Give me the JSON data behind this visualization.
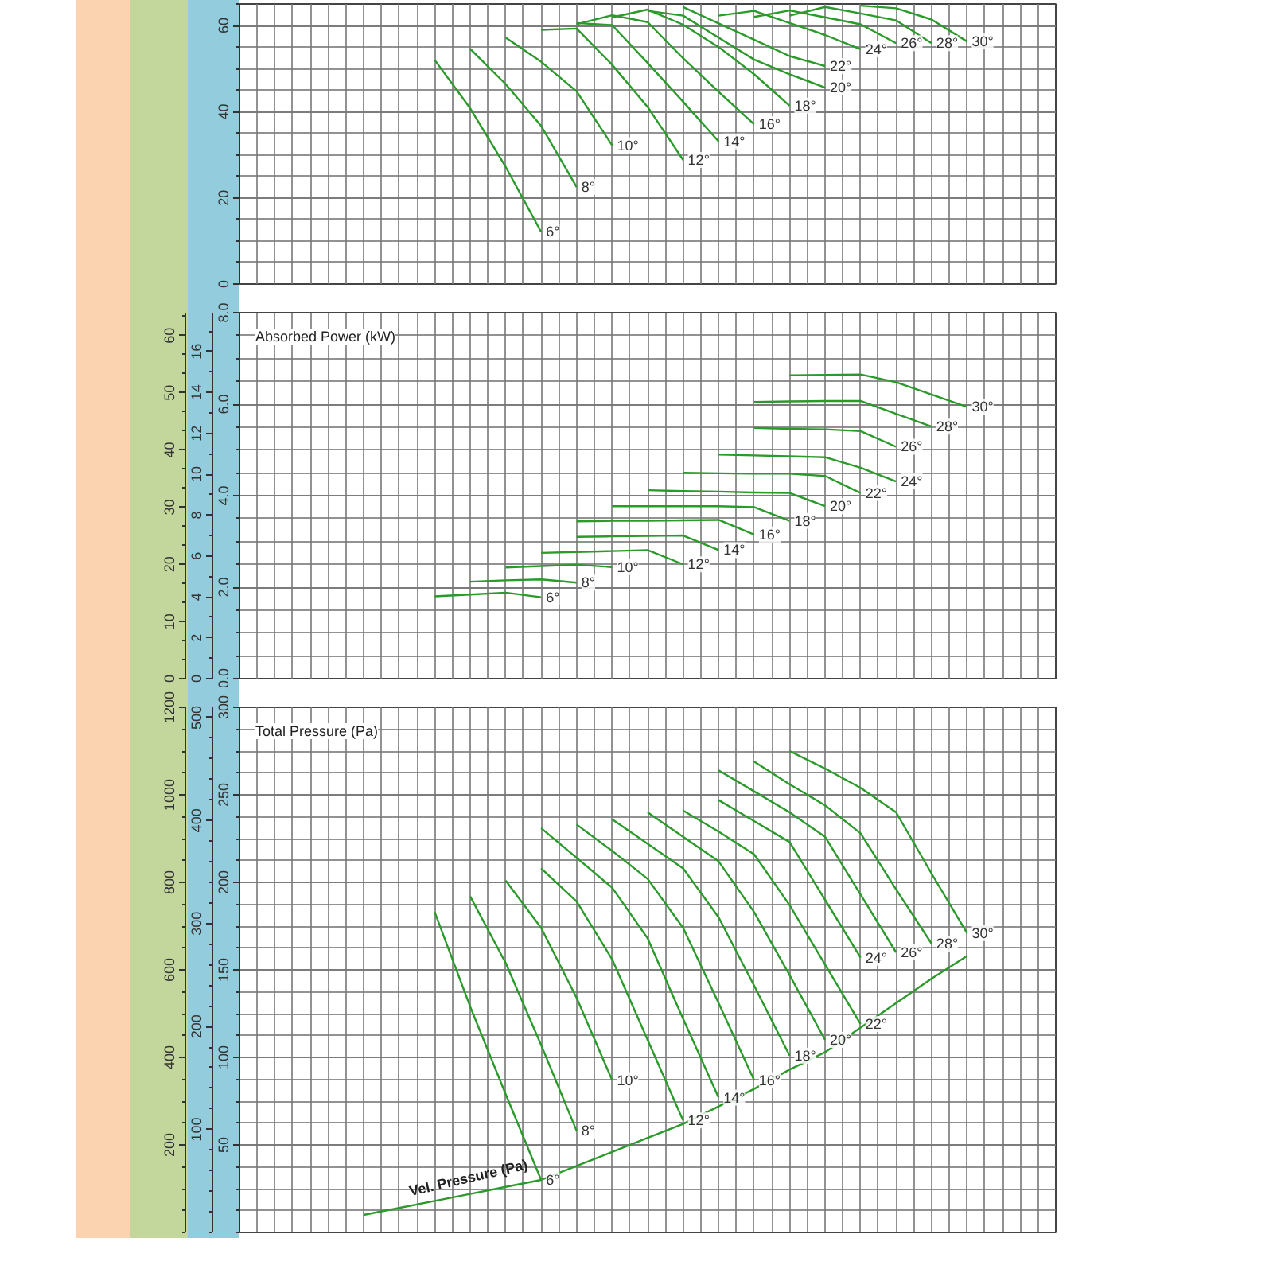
{
  "chart_data": [
    {
      "type": "line",
      "categories": [
        null,
        null,
        null,
        null,
        null,
        null,
        null,
        null,
        null,
        null,
        null,
        null,
        null,
        null,
        null,
        null,
        null,
        null,
        null,
        null,
        null,
        null,
        null
      ],
      "ylim": [
        0,
        65
      ],
      "yticks": [
        0,
        20,
        40,
        60
      ],
      "grid": true,
      "tick_labels": "y",
      "series": [
        {
          "name": "6°",
          "color": "#2a9a2a",
          "values": [
            null,
            null,
            null,
            null,
            null,
            52,
            40.8,
            27.2,
            12.1,
            null,
            null,
            null,
            null,
            null,
            null,
            null,
            null,
            null,
            null,
            null,
            null,
            null,
            null
          ]
        },
        {
          "name": "8°",
          "color": "#2a9a2a",
          "values": [
            null,
            null,
            null,
            null,
            null,
            null,
            54.6,
            46.4,
            36.7,
            22.5,
            null,
            null,
            null,
            null,
            null,
            null,
            null,
            null,
            null,
            null,
            null,
            null,
            null
          ]
        },
        {
          "name": "10°",
          "color": "#2a9a2a",
          "values": [
            null,
            null,
            null,
            null,
            null,
            null,
            null,
            57.2,
            51.6,
            44.7,
            32.2,
            null,
            null,
            null,
            null,
            null,
            null,
            null,
            null,
            null,
            null,
            null,
            null
          ]
        },
        {
          "name": "12°",
          "color": "#2a9a2a",
          "values": [
            null,
            null,
            null,
            null,
            null,
            null,
            null,
            null,
            59.0,
            59.3,
            50.9,
            41.1,
            28.8,
            null,
            null,
            null,
            null,
            null,
            null,
            null,
            null,
            null,
            null
          ]
        },
        {
          "name": "14°",
          "color": "#2a9a2a",
          "values": [
            null,
            null,
            null,
            null,
            null,
            null,
            null,
            null,
            null,
            60.6,
            60.1,
            51.3,
            42.3,
            33.1,
            null,
            null,
            null,
            null,
            null,
            null,
            null,
            null,
            null
          ]
        },
        {
          "name": "16°",
          "color": "#2a9a2a",
          "values": [
            null,
            null,
            null,
            null,
            null,
            null,
            null,
            null,
            null,
            60.3,
            62.4,
            60.8,
            52.4,
            44.6,
            37.1,
            null,
            null,
            null,
            null,
            null,
            null,
            null,
            null
          ]
        },
        {
          "name": "18°",
          "color": "#2a9a2a",
          "values": [
            null,
            null,
            null,
            null,
            null,
            null,
            null,
            null,
            null,
            null,
            61.9,
            63.7,
            60.2,
            55.0,
            48.7,
            41.4,
            null,
            null,
            null,
            null,
            null,
            null,
            null
          ]
        },
        {
          "name": "20°",
          "color": "#2a9a2a",
          "values": [
            null,
            null,
            null,
            null,
            null,
            null,
            null,
            null,
            null,
            null,
            null,
            63.4,
            62.3,
            57.2,
            52.1,
            48.7,
            45.6,
            null,
            null,
            null,
            null,
            null,
            null
          ]
        },
        {
          "name": "22°",
          "color": "#2a9a2a",
          "values": [
            null,
            null,
            null,
            null,
            null,
            null,
            null,
            null,
            null,
            null,
            null,
            null,
            64.3,
            60.5,
            56.7,
            52.9,
            50.6,
            null,
            null,
            null,
            null,
            null,
            null
          ]
        },
        {
          "name": "24°",
          "color": "#2a9a2a",
          "values": [
            null,
            null,
            null,
            null,
            null,
            null,
            null,
            null,
            null,
            null,
            null,
            null,
            null,
            62.3,
            63.4,
            60.6,
            57.8,
            54.5,
            null,
            null,
            null,
            null,
            null
          ]
        },
        {
          "name": "26°",
          "color": "#2a9a2a",
          "values": [
            null,
            null,
            null,
            null,
            null,
            null,
            null,
            null,
            null,
            null,
            null,
            null,
            null,
            null,
            62.0,
            63.5,
            61.9,
            60.3,
            55.9,
            null,
            null,
            null,
            null
          ]
        },
        {
          "name": "28°",
          "color": "#2a9a2a",
          "values": [
            null,
            null,
            null,
            null,
            null,
            null,
            null,
            null,
            null,
            null,
            null,
            null,
            null,
            null,
            null,
            62.3,
            64.3,
            62.8,
            61.2,
            55.9,
            null,
            null,
            null
          ]
        },
        {
          "name": "30°",
          "color": "#2a9a2a",
          "values": [
            null,
            null,
            null,
            null,
            null,
            null,
            null,
            null,
            null,
            null,
            null,
            null,
            null,
            null,
            null,
            null,
            null,
            64.6,
            64.0,
            61.4,
            56.3,
            null,
            null
          ]
        }
      ]
    },
    {
      "type": "line",
      "title": "Absorbed Power (kW)",
      "categories": [
        null,
        null,
        null,
        null,
        null,
        null,
        null,
        null,
        null,
        null,
        null,
        null,
        null,
        null,
        null,
        null,
        null,
        null,
        null,
        null,
        null,
        null,
        null
      ],
      "ylim": [
        0,
        8
      ],
      "yticks": [
        {
          "value": 0,
          "label": "0.0"
        },
        {
          "value": 2,
          "label": "2.0"
        },
        {
          "value": 4,
          "label": "4.0"
        },
        {
          "value": 6,
          "label": "6.0"
        },
        {
          "value": 8,
          "label": "8.0"
        }
      ],
      "y2lim": [
        0,
        17.9
      ],
      "y2ticks": [
        0,
        2,
        4,
        6,
        8,
        10,
        12,
        14,
        16
      ],
      "y3lim": [
        0,
        64
      ],
      "y3ticks": [
        0,
        10,
        20,
        30,
        40,
        50,
        60
      ],
      "grid": true,
      "tick_labels": "y",
      "series": [
        {
          "name": "6°",
          "color": "#2a9a2a",
          "values": [
            null,
            null,
            null,
            null,
            null,
            1.8,
            1.84,
            1.88,
            1.78,
            null,
            null,
            null,
            null,
            null,
            null,
            null,
            null,
            null,
            null,
            null,
            null,
            null,
            null
          ]
        },
        {
          "name": "8°",
          "color": "#2a9a2a",
          "values": [
            null,
            null,
            null,
            null,
            null,
            null,
            2.12,
            2.15,
            2.17,
            2.1,
            null,
            null,
            null,
            null,
            null,
            null,
            null,
            null,
            null,
            null,
            null,
            null,
            null
          ]
        },
        {
          "name": "10°",
          "color": "#2a9a2a",
          "values": [
            null,
            null,
            null,
            null,
            null,
            null,
            null,
            2.43,
            2.46,
            2.49,
            2.44,
            null,
            null,
            null,
            null,
            null,
            null,
            null,
            null,
            null,
            null,
            null,
            null
          ]
        },
        {
          "name": "12°",
          "color": "#2a9a2a",
          "values": [
            null,
            null,
            null,
            null,
            null,
            null,
            null,
            null,
            2.75,
            2.77,
            2.79,
            2.81,
            2.5,
            null,
            null,
            null,
            null,
            null,
            null,
            null,
            null,
            null,
            null
          ]
        },
        {
          "name": "14°",
          "color": "#2a9a2a",
          "values": [
            null,
            null,
            null,
            null,
            null,
            null,
            null,
            null,
            null,
            3.1,
            3.11,
            3.12,
            3.13,
            2.81,
            null,
            null,
            null,
            null,
            null,
            null,
            null,
            null,
            null
          ]
        },
        {
          "name": "16°",
          "color": "#2a9a2a",
          "values": [
            null,
            null,
            null,
            null,
            null,
            null,
            null,
            null,
            null,
            3.44,
            3.45,
            3.45,
            3.46,
            3.47,
            3.15,
            null,
            null,
            null,
            null,
            null,
            null,
            null,
            null
          ]
        },
        {
          "name": "18°",
          "color": "#2a9a2a",
          "values": [
            null,
            null,
            null,
            null,
            null,
            null,
            null,
            null,
            null,
            null,
            3.77,
            3.77,
            3.77,
            3.77,
            3.75,
            3.45,
            null,
            null,
            null,
            null,
            null,
            null,
            null
          ]
        },
        {
          "name": "20°",
          "color": "#2a9a2a",
          "values": [
            null,
            null,
            null,
            null,
            null,
            null,
            null,
            null,
            null,
            null,
            null,
            4.12,
            4.1,
            4.09,
            4.07,
            4.06,
            3.77,
            null,
            null,
            null,
            null,
            null,
            null
          ]
        },
        {
          "name": "22°",
          "color": "#2a9a2a",
          "values": [
            null,
            null,
            null,
            null,
            null,
            null,
            null,
            null,
            null,
            null,
            null,
            null,
            4.5,
            4.49,
            4.48,
            4.48,
            4.43,
            4.06,
            null,
            null,
            null,
            null,
            null
          ]
        },
        {
          "name": "24°",
          "color": "#2a9a2a",
          "values": [
            null,
            null,
            null,
            null,
            null,
            null,
            null,
            null,
            null,
            null,
            null,
            null,
            null,
            4.9,
            4.88,
            4.86,
            4.84,
            4.61,
            4.31,
            null,
            null,
            null,
            null
          ]
        },
        {
          "name": "26°",
          "color": "#2a9a2a",
          "values": [
            null,
            null,
            null,
            null,
            null,
            null,
            null,
            null,
            null,
            null,
            null,
            null,
            null,
            null,
            5.48,
            5.46,
            5.45,
            5.41,
            5.07,
            null,
            null,
            null,
            null
          ]
        },
        {
          "name": "28°",
          "color": "#2a9a2a",
          "values": [
            null,
            null,
            null,
            null,
            null,
            null,
            null,
            null,
            null,
            null,
            null,
            null,
            null,
            null,
            6.05,
            6.06,
            6.07,
            6.07,
            5.79,
            5.51,
            null,
            null,
            null
          ]
        },
        {
          "name": "30°",
          "color": "#2a9a2a",
          "values": [
            null,
            null,
            null,
            null,
            null,
            null,
            null,
            null,
            null,
            null,
            null,
            null,
            null,
            null,
            null,
            6.63,
            6.64,
            6.65,
            6.48,
            6.21,
            5.94,
            null,
            null
          ]
        }
      ]
    },
    {
      "type": "line",
      "title": "Total Pressure (Pa)",
      "categories": [
        null,
        null,
        null,
        null,
        null,
        null,
        null,
        null,
        null,
        null,
        null,
        null,
        null,
        null,
        null,
        null,
        null,
        null,
        null,
        null,
        null,
        null,
        null
      ],
      "ylim": [
        0,
        300
      ],
      "yticks": [
        50,
        100,
        150,
        200,
        250,
        300
      ],
      "y2lim": [
        0,
        510
      ],
      "y2ticks": [
        100,
        200,
        300,
        400,
        500
      ],
      "y3lim": [
        0,
        1200
      ],
      "y3ticks": [
        200,
        400,
        600,
        800,
        1000,
        1200
      ],
      "grid": true,
      "tick_labels": "y",
      "series": [
        {
          "name": "6°",
          "color": "#2a9a2a",
          "values": [
            null,
            null,
            null,
            null,
            null,
            183,
            129,
            79,
            30,
            null,
            null,
            null,
            null,
            null,
            null,
            null,
            null,
            null,
            null,
            null,
            null,
            null,
            null
          ]
        },
        {
          "name": "8°",
          "color": "#2a9a2a",
          "values": [
            null,
            null,
            null,
            null,
            null,
            null,
            192,
            154,
            107,
            58,
            null,
            null,
            null,
            null,
            null,
            null,
            null,
            null,
            null,
            null,
            null,
            null,
            null
          ]
        },
        {
          "name": "10°",
          "color": "#2a9a2a",
          "values": [
            null,
            null,
            null,
            null,
            null,
            null,
            null,
            201,
            174,
            134,
            87,
            null,
            null,
            null,
            null,
            null,
            null,
            null,
            null,
            null,
            null,
            null,
            null
          ]
        },
        {
          "name": "12°",
          "color": "#2a9a2a",
          "values": [
            null,
            null,
            null,
            null,
            null,
            null,
            null,
            null,
            208,
            189,
            156,
            110,
            64,
            null,
            null,
            null,
            null,
            null,
            null,
            null,
            null,
            null,
            null
          ]
        },
        {
          "name": "14°",
          "color": "#2a9a2a",
          "values": [
            null,
            null,
            null,
            null,
            null,
            null,
            null,
            null,
            231,
            214,
            197,
            168,
            122,
            77,
            null,
            null,
            null,
            null,
            null,
            null,
            null,
            null,
            null
          ]
        },
        {
          "name": "16°",
          "color": "#2a9a2a",
          "values": [
            null,
            null,
            null,
            null,
            null,
            null,
            null,
            null,
            null,
            233,
            218,
            202,
            174,
            131,
            87,
            null,
            null,
            null,
            null,
            null,
            null,
            null,
            null
          ]
        },
        {
          "name": "18°",
          "color": "#2a9a2a",
          "values": [
            null,
            null,
            null,
            null,
            null,
            null,
            null,
            null,
            null,
            null,
            236,
            222,
            208,
            180,
            141,
            101,
            null,
            null,
            null,
            null,
            null,
            null,
            null
          ]
        },
        {
          "name": "20°",
          "color": "#2a9a2a",
          "values": [
            null,
            null,
            null,
            null,
            null,
            null,
            null,
            null,
            null,
            null,
            null,
            240,
            226,
            212,
            183,
            147,
            110,
            null,
            null,
            null,
            null,
            null,
            null
          ]
        },
        {
          "name": "22°",
          "color": "#2a9a2a",
          "values": [
            null,
            null,
            null,
            null,
            null,
            null,
            null,
            null,
            null,
            null,
            null,
            null,
            241,
            229,
            216,
            187,
            153,
            119,
            null,
            null,
            null,
            null,
            null
          ]
        },
        {
          "name": "24°",
          "color": "#2a9a2a",
          "values": [
            null,
            null,
            null,
            null,
            null,
            null,
            null,
            null,
            null,
            null,
            null,
            null,
            null,
            247,
            235,
            223,
            190,
            157,
            null,
            null,
            null,
            null,
            null
          ]
        },
        {
          "name": "26°",
          "color": "#2a9a2a",
          "values": [
            null,
            null,
            null,
            null,
            null,
            null,
            null,
            null,
            null,
            null,
            null,
            null,
            null,
            264,
            252,
            240,
            226,
            193,
            160,
            null,
            null,
            null,
            null
          ]
        },
        {
          "name": "28°",
          "color": "#2a9a2a",
          "values": [
            null,
            null,
            null,
            null,
            null,
            null,
            null,
            null,
            null,
            null,
            null,
            null,
            null,
            null,
            269,
            256,
            244,
            228,
            196,
            165,
            null,
            null,
            null
          ]
        },
        {
          "name": "30°",
          "color": "#2a9a2a",
          "values": [
            null,
            null,
            null,
            null,
            null,
            null,
            null,
            null,
            null,
            null,
            null,
            null,
            null,
            null,
            null,
            275,
            265,
            254,
            240,
            205,
            171,
            null,
            null
          ]
        },
        {
          "name": "Vel. Pressure (Pa)",
          "color": "#2a9a2a",
          "values": [
            null,
            null,
            null,
            10,
            14,
            18,
            22,
            26,
            30,
            38,
            46,
            54,
            62,
            72,
            82,
            93,
            103,
            117,
            131,
            145,
            158,
            null,
            null
          ]
        }
      ]
    }
  ]
}
